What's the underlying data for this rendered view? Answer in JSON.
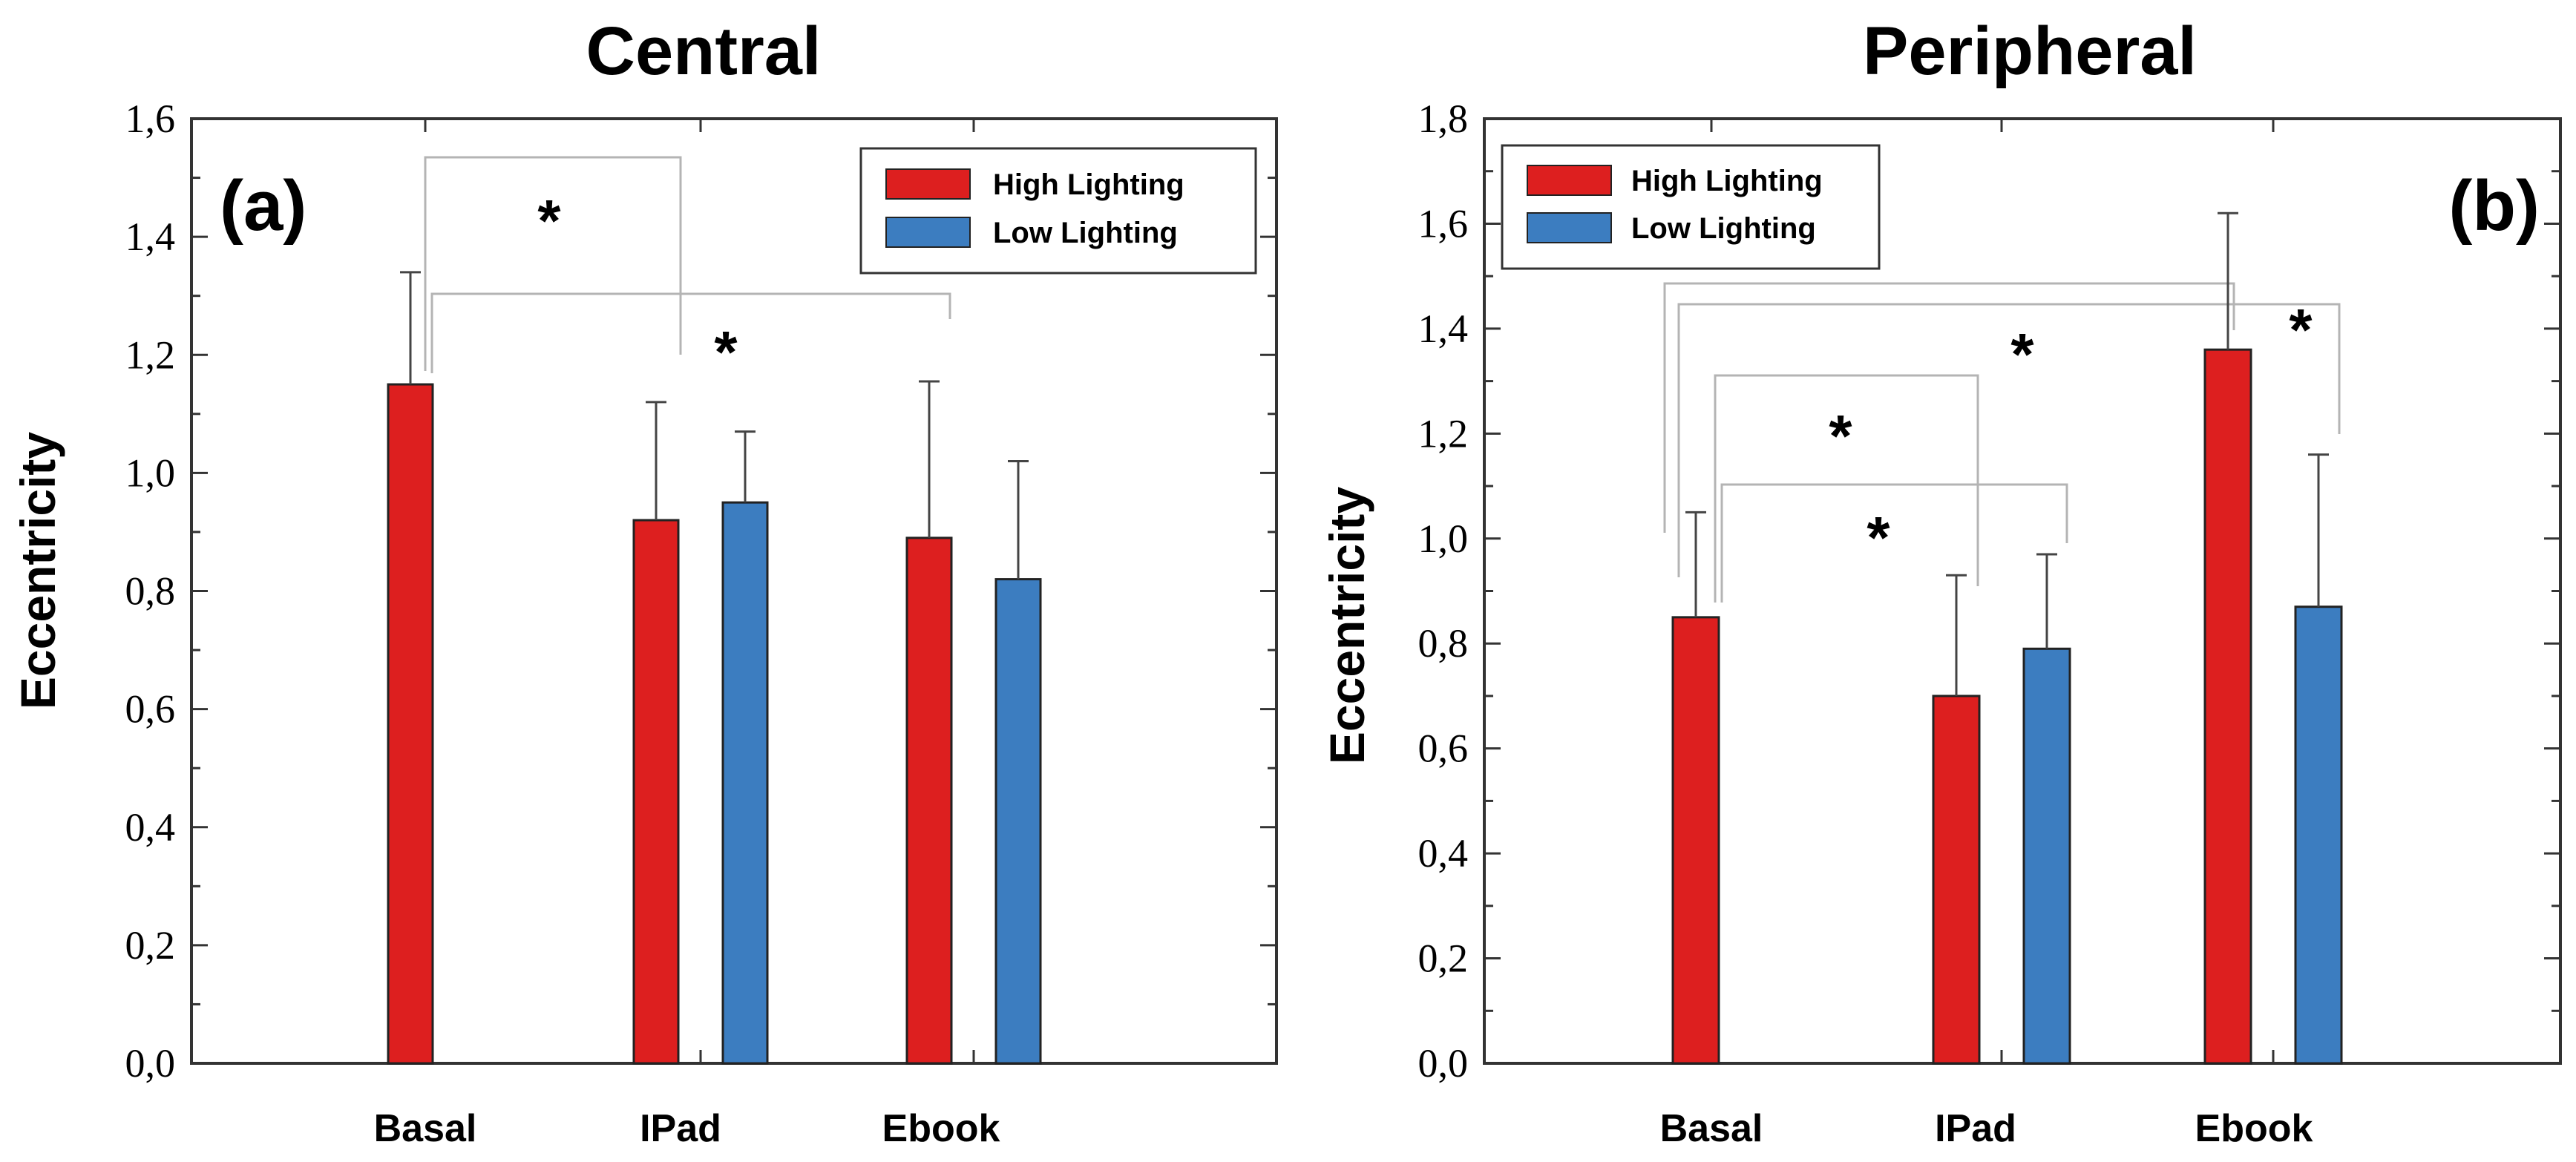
{
  "chart_data": [
    {
      "type": "bar",
      "title": "Central",
      "panel_label": "(a)",
      "ylabel": "Eccentricity",
      "xlabel": "",
      "categories": [
        "Basal",
        "IPad",
        "Ebook"
      ],
      "ylim": [
        0,
        1.6
      ],
      "yticks": [
        0.0,
        0.2,
        0.4,
        0.6,
        0.8,
        1.0,
        1.2,
        1.4,
        1.6
      ],
      "ytick_labels": [
        "0,0",
        "0,2",
        "0,4",
        "0,6",
        "0,8",
        "1,0",
        "1,2",
        "1,4",
        "1,6"
      ],
      "legend_position": "top-right",
      "series": [
        {
          "name": "High Lighting",
          "color": "#dd1f1f",
          "values": [
            1.15,
            0.92,
            0.89
          ],
          "errors": [
            0.19,
            0.2,
            0.265
          ]
        },
        {
          "name": "Low Lighting",
          "color": "#3c7dc0",
          "values": [
            null,
            0.95,
            0.82
          ],
          "errors": [
            null,
            0.12,
            0.2
          ]
        }
      ],
      "annotations": [
        "*",
        "*"
      ]
    },
    {
      "type": "bar",
      "title": "Peripheral",
      "panel_label": "(b)",
      "ylabel": "Eccentricity",
      "xlabel": "",
      "categories": [
        "Basal",
        "IPad",
        "Ebook"
      ],
      "ylim": [
        0,
        1.8
      ],
      "yticks": [
        0.0,
        0.2,
        0.4,
        0.6,
        0.8,
        1.0,
        1.2,
        1.4,
        1.6,
        1.8
      ],
      "ytick_labels": [
        "0,0",
        "0,2",
        "0,4",
        "0,6",
        "0,8",
        "1,0",
        "1,2",
        "1,4",
        "1,6",
        "1,8"
      ],
      "legend_position": "top-left",
      "series": [
        {
          "name": "High Lighting",
          "color": "#dd1f1f",
          "values": [
            0.85,
            0.7,
            1.36
          ],
          "errors": [
            0.2,
            0.23,
            0.26
          ]
        },
        {
          "name": "Low Lighting",
          "color": "#3c7dc0",
          "values": [
            null,
            0.79,
            0.87
          ],
          "errors": [
            null,
            0.18,
            0.29
          ]
        }
      ],
      "annotations": [
        "*",
        "*",
        "*",
        "*"
      ]
    }
  ]
}
